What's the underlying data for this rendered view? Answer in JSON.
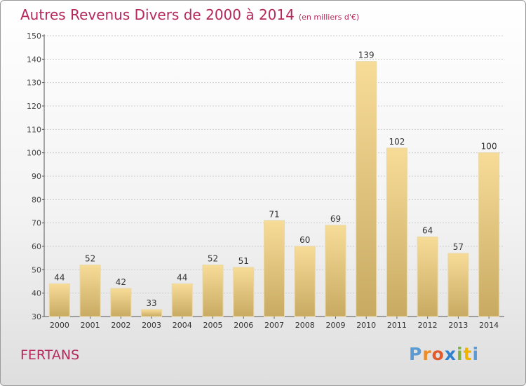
{
  "title": "Autres Revenus Divers de 2000 à 2014",
  "unit": "(en milliers d'€)",
  "place": "FERTANS",
  "logo": {
    "text": "Proxiti",
    "letter_colors": [
      "#5b9bd5",
      "#f08a24",
      "#e05a2b",
      "#2f7fd0",
      "#7cb342",
      "#f0b400",
      "#5b9bd5"
    ]
  },
  "colors": {
    "title": "#b5285b",
    "bar_light": "#f7dc98",
    "bar_dark": "#c8aa62",
    "axis": "#555555",
    "grid": "#cfcfcf"
  },
  "chart_data": {
    "type": "bar",
    "categories": [
      "2000",
      "2001",
      "2002",
      "2003",
      "2004",
      "2005",
      "2006",
      "2007",
      "2008",
      "2009",
      "2010",
      "2011",
      "2012",
      "2013",
      "2014"
    ],
    "values": [
      44,
      52,
      42,
      33,
      44,
      52,
      51,
      71,
      60,
      69,
      139,
      102,
      64,
      57,
      100
    ],
    "ylim": [
      30,
      150
    ],
    "yticks": [
      30,
      40,
      50,
      60,
      70,
      80,
      90,
      100,
      110,
      120,
      130,
      140,
      150
    ],
    "grid": "horizontal-dashed",
    "legend": "none"
  }
}
